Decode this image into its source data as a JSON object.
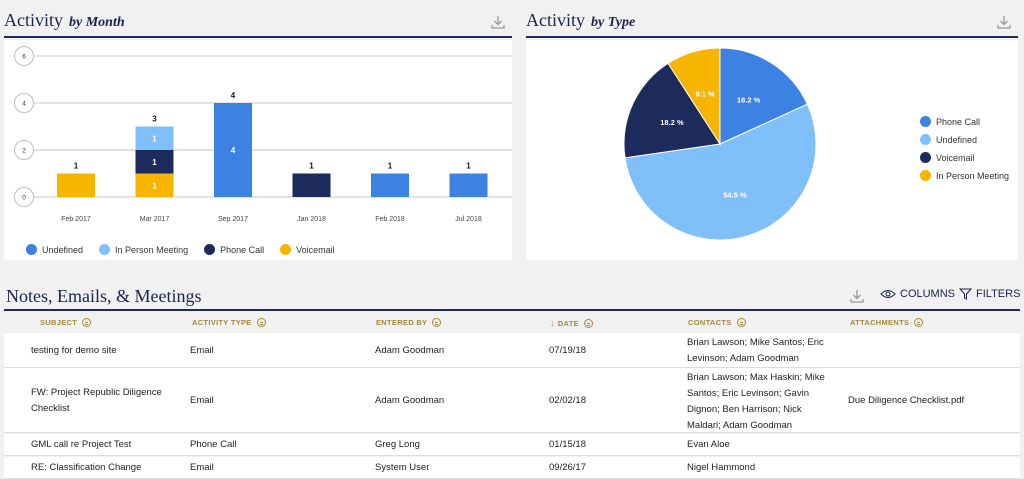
{
  "activity_month": {
    "title": "Activity",
    "subtitle": "by Month",
    "chart_data": {
      "type": "bar",
      "stacked": true,
      "categories": [
        "Feb 2017",
        "Mar 2017",
        "Sep 2017",
        "Jan 2018",
        "Feb 2018",
        "Jul 2018"
      ],
      "series": [
        {
          "name": "Voicemail",
          "color": "#f7b500",
          "values": [
            1,
            1,
            0,
            0,
            0,
            0
          ]
        },
        {
          "name": "Phone Call",
          "color": "#1c2a5c",
          "values": [
            0,
            1,
            0,
            1,
            0,
            0
          ]
        },
        {
          "name": "In Person Meeting",
          "color": "#7fc0fb",
          "values": [
            0,
            1,
            0,
            0,
            0,
            0
          ]
        },
        {
          "name": "Undefined",
          "color": "#3b82e3",
          "values": [
            0,
            0,
            4,
            0,
            1,
            1
          ]
        }
      ],
      "totals": [
        1,
        3,
        4,
        1,
        1,
        1
      ],
      "yticks": [
        0,
        2,
        4,
        6
      ],
      "ylim": [
        0,
        6
      ],
      "legend": [
        "Undefined",
        "In Person Meeting",
        "Phone Call",
        "Voicemail"
      ],
      "legend_placement": "bottom",
      "grid": true
    }
  },
  "activity_type": {
    "title": "Activity",
    "subtitle": "by Type",
    "chart_data": {
      "type": "pie",
      "slices": [
        {
          "name": "Phone Call",
          "value": 18.2,
          "label": "18.2 %",
          "color": "#3b82e3"
        },
        {
          "name": "Undefined",
          "value": 54.5,
          "label": "54.5 %",
          "color": "#7fc0fb"
        },
        {
          "name": "Voicemail",
          "value": 18.2,
          "label": "18.2 %",
          "color": "#1c2a5c"
        },
        {
          "name": "In Person Meeting",
          "value": 9.1,
          "label": "9.1 %",
          "color": "#f7b500"
        }
      ],
      "legend_placement": "right"
    }
  },
  "notes": {
    "title": "Notes, Emails, & Meetings",
    "columns_label": "COLUMNS",
    "filters_label": "FILTERS",
    "headers": [
      "SUBJECT",
      "ACTIVITY TYPE",
      "ENTERED BY",
      "DATE",
      "CONTACTS",
      "ATTACHMENTS"
    ],
    "sort_arrow": "↓",
    "rows": [
      {
        "subject": [
          "testing for demo site"
        ],
        "type": "Email",
        "entered_by": "Adam Goodman",
        "date": "07/19/18",
        "contacts": [
          "Brian Lawson; Mike Santos; Eric",
          "Levinson; Adam Goodman"
        ],
        "attachments": ""
      },
      {
        "subject": [
          "FW: Project Republic Diligence",
          "Checklist"
        ],
        "type": "Email",
        "entered_by": "Adam Goodman",
        "date": "02/02/18",
        "contacts": [
          "Brian Lawson; Max Haskin; Mike",
          "Santos; Eric Levinson; Gavin",
          "Dignon; Ben Harrison; Nick",
          "Maldari; Adam Goodman"
        ],
        "attachments": "Due Diligence Checklist.pdf"
      },
      {
        "subject": [
          "GML call re Project Test"
        ],
        "type": "Phone Call",
        "entered_by": "Greg Long",
        "date": "01/15/18",
        "contacts": [
          "Evan Aloe"
        ],
        "attachments": ""
      },
      {
        "subject": [
          "RE: Classification Change"
        ],
        "type": "Email",
        "entered_by": "System User",
        "date": "09/26/17",
        "contacts": [
          "Nigel Hammond"
        ],
        "attachments": ""
      }
    ]
  }
}
